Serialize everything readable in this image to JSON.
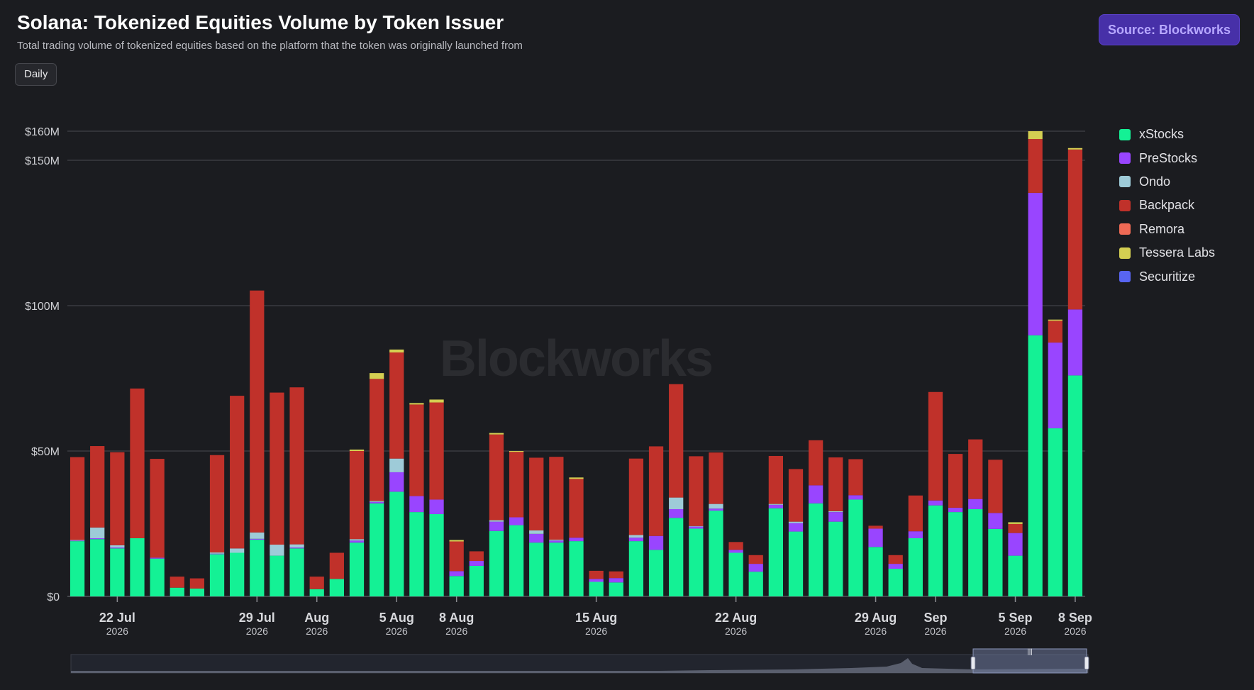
{
  "header": {
    "title": "Solana: Tokenized Equities Volume by Token Issuer",
    "subtitle": "Total trading volume of tokenized equities based on the platform that the token was originally launched from",
    "period_button": "Daily",
    "source_button": "Source: Blockworks"
  },
  "watermark": "Blockworks",
  "chart_data": {
    "type": "bar",
    "stacked": true,
    "ylim": [
      0,
      160
    ],
    "y_ticks": [
      {
        "value": 0,
        "label": "$0"
      },
      {
        "value": 50,
        "label": "$50M"
      },
      {
        "value": 100,
        "label": "$100M"
      },
      {
        "value": 150,
        "label": "$150M"
      },
      {
        "value": 160,
        "label": "$160M"
      }
    ],
    "x_ticks": [
      {
        "index": 2,
        "label": "22 Jul",
        "sub": "2026"
      },
      {
        "index": 9,
        "label": "29 Jul",
        "sub": "2026"
      },
      {
        "index": 12,
        "label": "Aug",
        "sub": "2026"
      },
      {
        "index": 16,
        "label": "5 Aug",
        "sub": "2026"
      },
      {
        "index": 19,
        "label": "8 Aug",
        "sub": "2026"
      },
      {
        "index": 26,
        "label": "15 Aug",
        "sub": "2026"
      },
      {
        "index": 33,
        "label": "22 Aug",
        "sub": "2026"
      },
      {
        "index": 40,
        "label": "29 Aug",
        "sub": "2026"
      },
      {
        "index": 43,
        "label": "Sep",
        "sub": "2026"
      },
      {
        "index": 47,
        "label": "5 Sep",
        "sub": "2026"
      },
      {
        "index": 50,
        "label": "8 Sep",
        "sub": "2026"
      }
    ],
    "categories": [
      "20 Jul",
      "21 Jul",
      "22 Jul",
      "23 Jul",
      "24 Jul",
      "25 Jul",
      "26 Jul",
      "27 Jul",
      "28 Jul",
      "29 Jul",
      "30 Jul",
      "31 Jul",
      "1 Aug",
      "2 Aug",
      "3 Aug",
      "4 Aug",
      "5 Aug",
      "6 Aug",
      "7 Aug",
      "8 Aug",
      "9 Aug",
      "10 Aug",
      "11 Aug",
      "12 Aug",
      "13 Aug",
      "14 Aug",
      "15 Aug",
      "16 Aug",
      "17 Aug",
      "18 Aug",
      "19 Aug",
      "20 Aug",
      "21 Aug",
      "22 Aug",
      "23 Aug",
      "24 Aug",
      "25 Aug",
      "26 Aug",
      "27 Aug",
      "28 Aug",
      "29 Aug",
      "30 Aug",
      "31 Aug",
      "1 Sep",
      "2 Sep",
      "3 Sep",
      "4 Sep",
      "5 Sep",
      "6 Sep",
      "7 Sep",
      "8 Sep"
    ],
    "series": [
      {
        "name": "xStocks",
        "color": "#14f195",
        "values": [
          19,
          19.7,
          16.5,
          20,
          13,
          3,
          2.7,
          14.5,
          15,
          19.5,
          14,
          16.5,
          2.5,
          6,
          18.5,
          32,
          36,
          29,
          28.3,
          7,
          10.5,
          22.5,
          24.5,
          18.5,
          18.5,
          19,
          5,
          4.8,
          19,
          16,
          27,
          23.3,
          29.5,
          15,
          8.5,
          30.3,
          22.3,
          32,
          25.7,
          33.3,
          17,
          9.5,
          20,
          31.3,
          29,
          30,
          23.2,
          14,
          89.8,
          57.8,
          76
        ]
      },
      {
        "name": "PreStocks",
        "color": "#9945ff",
        "values": [
          0.2,
          0.3,
          0.3,
          0,
          0.3,
          0,
          0,
          0.2,
          0,
          0.3,
          0,
          0.3,
          0,
          0,
          0.7,
          0.5,
          6.7,
          5.5,
          5,
          1.7,
          1.7,
          3.2,
          2.7,
          3,
          0.7,
          1.2,
          1,
          1.5,
          1.2,
          4.8,
          3,
          0.7,
          0.7,
          1,
          2.7,
          1.2,
          2.9,
          6.2,
          3.3,
          1.5,
          6.3,
          1.7,
          2.4,
          1.7,
          1.5,
          3.5,
          5.5,
          7.8,
          49,
          29.5,
          22.7
        ]
      },
      {
        "name": "Ondo",
        "color": "#9ecbd8",
        "values": [
          0.2,
          3.7,
          0.8,
          0,
          0,
          0,
          0,
          0.4,
          1.5,
          2.2,
          3.8,
          1.1,
          0,
          0,
          0.5,
          0.3,
          4.7,
          0,
          0,
          0,
          0,
          0.5,
          0,
          1.2,
          0.3,
          0,
          0,
          0,
          0.9,
          0,
          4,
          0.2,
          1.6,
          0,
          0,
          0.3,
          0.5,
          0,
          0.3,
          0,
          0,
          0,
          0,
          0,
          0,
          0,
          0,
          0,
          0,
          0,
          0
        ]
      },
      {
        "name": "Backpack",
        "color": "#c0312a",
        "values": [
          28.5,
          28,
          32,
          51.5,
          34,
          3.8,
          3.5,
          33.5,
          52.5,
          83.2,
          52.3,
          54,
          4.3,
          9,
          30.3,
          42,
          36.5,
          31.5,
          33.4,
          10.2,
          3.3,
          29.5,
          22.5,
          25,
          28.5,
          20.2,
          2.8,
          2.3,
          26.3,
          30.8,
          39,
          24,
          17.7,
          2.7,
          3,
          16.5,
          18.1,
          15.5,
          18.5,
          12.4,
          1,
          3,
          12.3,
          37.3,
          18.5,
          20.5,
          18.3,
          3.1,
          18.5,
          7.5,
          55
        ]
      },
      {
        "name": "Remora",
        "color": "#ef6a55",
        "values": [
          0,
          0,
          0,
          0,
          0,
          0,
          0,
          0,
          0,
          0,
          0,
          0,
          0,
          0,
          0,
          0,
          0,
          0,
          0,
          0,
          0,
          0,
          0,
          0,
          0,
          0,
          0,
          0,
          0,
          0,
          0,
          0,
          0,
          0,
          0,
          0,
          0,
          0,
          0,
          0,
          0,
          0,
          0,
          0,
          0,
          0,
          0,
          0,
          0,
          0,
          0
        ]
      },
      {
        "name": "Tessera Labs",
        "color": "#d4cf52",
        "values": [
          0,
          0,
          0,
          0,
          0,
          0,
          0,
          0,
          0,
          0,
          0,
          0,
          0,
          0,
          0.5,
          2,
          1,
          0.5,
          1,
          0.5,
          0,
          0.5,
          0.3,
          0,
          0,
          0.5,
          0,
          0,
          0,
          0,
          0,
          0,
          0,
          0,
          0,
          0,
          0,
          0,
          0,
          0,
          0,
          0,
          0,
          0,
          0,
          0,
          0,
          0.6,
          2.7,
          0.4,
          0.5
        ]
      },
      {
        "name": "Securitize",
        "color": "#5865f2",
        "values": [
          0,
          0,
          0,
          0,
          0,
          0,
          0,
          0,
          0,
          0,
          0,
          0,
          0,
          0,
          0,
          0,
          0,
          0,
          0,
          0,
          0,
          0,
          0,
          0,
          0,
          0,
          0,
          0,
          0,
          0,
          0,
          0,
          0,
          0,
          0,
          0,
          0,
          0,
          0,
          0,
          0,
          0,
          0,
          0,
          0,
          0,
          0,
          0,
          0,
          0,
          0
        ]
      }
    ],
    "legend_position": "right",
    "grid": true
  }
}
